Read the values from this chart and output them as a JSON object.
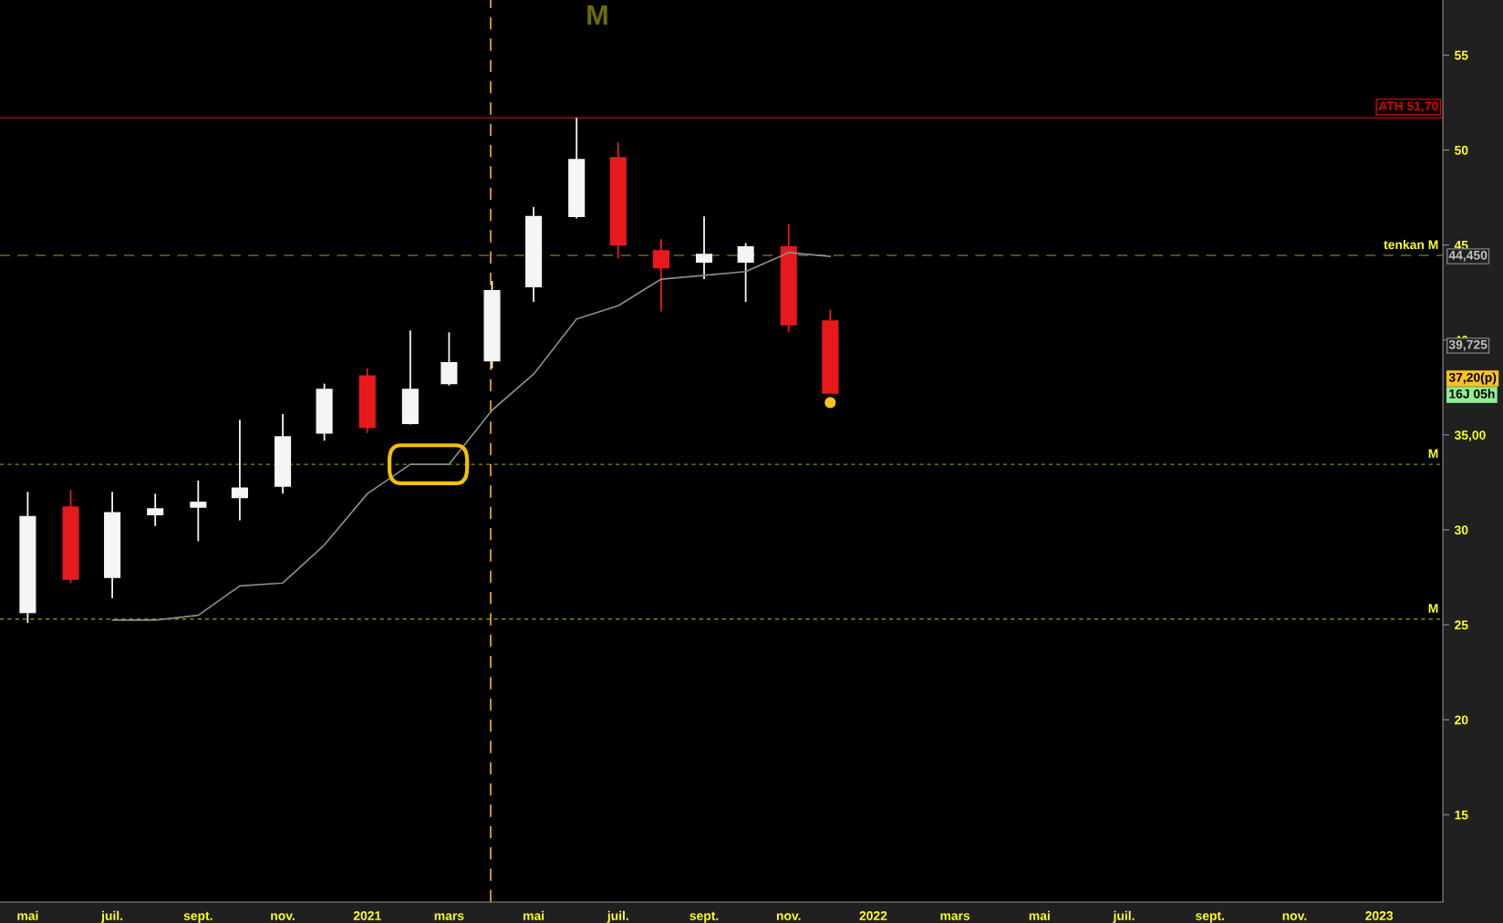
{
  "chart_data": {
    "type": "candlestick",
    "title": "M",
    "x": [
      "2020-05",
      "2020-06",
      "2020-07",
      "2020-08",
      "2020-09",
      "2020-10",
      "2020-11",
      "2020-12",
      "2021-01",
      "2021-02",
      "2021-03",
      "2021-04",
      "2021-05",
      "2021-06",
      "2021-07",
      "2021-08",
      "2021-09",
      "2021-10",
      "2021-11",
      "2021-12"
    ],
    "ohlc": [
      [
        25.65,
        32.0,
        25.1,
        30.7
      ],
      [
        31.2,
        32.1,
        27.2,
        27.4
      ],
      [
        27.5,
        32.0,
        26.4,
        30.9
      ],
      [
        30.8,
        31.9,
        30.2,
        31.1
      ],
      [
        31.2,
        32.6,
        29.4,
        31.45
      ],
      [
        31.7,
        35.8,
        30.5,
        32.2
      ],
      [
        32.3,
        36.1,
        31.9,
        34.9
      ],
      [
        35.1,
        37.7,
        34.7,
        37.4
      ],
      [
        38.1,
        38.5,
        35.1,
        35.4
      ],
      [
        35.6,
        40.5,
        35.55,
        37.4
      ],
      [
        37.7,
        40.4,
        37.6,
        38.8
      ],
      [
        38.9,
        43.1,
        38.5,
        42.6
      ],
      [
        42.8,
        47.0,
        42.0,
        46.5
      ],
      [
        46.5,
        51.7,
        46.4,
        49.5
      ],
      [
        49.6,
        50.4,
        44.3,
        45.0
      ],
      [
        44.7,
        45.3,
        41.5,
        43.8
      ],
      [
        44.1,
        46.5,
        43.2,
        44.5
      ],
      [
        44.1,
        45.1,
        42.0,
        44.9
      ],
      [
        44.9,
        46.1,
        40.4,
        40.8
      ],
      [
        41.0,
        41.6,
        37.2,
        37.2
      ]
    ],
    "colors": [
      "#f5f5f5",
      "#e8191c",
      "#f5f5f5",
      "#f5f5f5",
      "#f5f5f5",
      "#f5f5f5",
      "#f5f5f5",
      "#f5f5f5",
      "#e8191c",
      "#f5f5f5",
      "#f5f5f5",
      "#f5f5f5",
      "#f5f5f5",
      "#f5f5f5",
      "#e8191c",
      "#e8191c",
      "#f5f5f5",
      "#f5f5f5",
      "#e8191c",
      "#e8191c"
    ],
    "series": [
      {
        "type": "line",
        "color": "#8c8c8c",
        "x": [
          "2020-07",
          "2020-08",
          "2020-09",
          "2020-10",
          "2020-11",
          "2020-12",
          "2021-01",
          "2021-02",
          "2021-03",
          "2021-04",
          "2021-05",
          "2021-06",
          "2021-07",
          "2021-08",
          "2021-09",
          "2021-10",
          "2021-11",
          "2021-12"
        ],
        "values": [
          25.25,
          25.25,
          25.5,
          27.05,
          27.2,
          29.2,
          31.9,
          33.45,
          33.45,
          36.3,
          38.2,
          41.1,
          41.8,
          43.2,
          43.4,
          43.6,
          44.6,
          44.4
        ]
      },
      {
        "type": "scatter",
        "color": "#ffc020",
        "x": [
          "2021-12"
        ],
        "values": [
          36.7
        ]
      }
    ],
    "ylim": [
      10.4,
      57.9
    ],
    "yticks": [
      15,
      20,
      25,
      30,
      {
        "value": 35,
        "label": "35,00"
      },
      40,
      45,
      50,
      55
    ],
    "xlim": [
      "2020-04-11",
      "2023-02-16"
    ],
    "xticks": [
      {
        "value": "2020-05",
        "label": "mai"
      },
      {
        "value": "2020-07",
        "label": "juil."
      },
      {
        "value": "2020-09",
        "label": "sept."
      },
      {
        "value": "2020-11",
        "label": "nov."
      },
      {
        "value": "2021-01",
        "label": "2021"
      },
      {
        "value": "2021-03",
        "label": "mars"
      },
      {
        "value": "2021-05",
        "label": "mai"
      },
      {
        "value": "2021-07",
        "label": "juil."
      },
      {
        "value": "2021-09",
        "label": "sept."
      },
      {
        "value": "2021-11",
        "label": "nov."
      },
      {
        "value": "2022-01",
        "label": "2022"
      },
      {
        "value": "2022-03",
        "label": "mars"
      },
      {
        "value": "2022-05",
        "label": "mai"
      },
      {
        "value": "2022-07",
        "label": "juil."
      },
      {
        "value": "2022-09",
        "label": "sept."
      },
      {
        "value": "2022-11",
        "label": "nov."
      },
      {
        "value": "2023-01",
        "label": "2023"
      }
    ],
    "ref_lines": [
      {
        "axis": "y",
        "value": 51.7,
        "label": "ATH 51,70",
        "color": "#e00000",
        "line_style": "solid"
      },
      {
        "axis": "y",
        "value": 44.45,
        "label": "tenkan M",
        "color": "#6b6b10",
        "line_style": "dashed"
      },
      {
        "axis": "y",
        "value": 33.45,
        "label": "M",
        "color": "#8a8a00",
        "line_style": "dotted"
      },
      {
        "axis": "y",
        "value": 25.3,
        "label": "M",
        "color": "#8a8a00",
        "line_style": "dotted"
      },
      {
        "axis": "x",
        "value": "2021-03-31",
        "color": "#f0b030",
        "line_style": "dashed"
      }
    ],
    "annotations": [
      "44,450",
      "39,725",
      "37,20(p)",
      "16J 05h"
    ]
  }
}
